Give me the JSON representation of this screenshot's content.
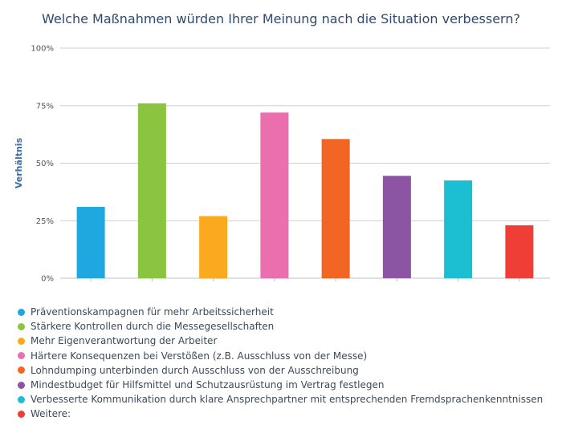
{
  "chart_data": {
    "type": "bar",
    "title": "Welche Maßnahmen würden Ihrer Meinung nach die Situation verbessern?",
    "ylabel": "Verhältnis",
    "xlabel": "",
    "ylim": [
      0,
      100
    ],
    "yticks": [
      "0%",
      "25%",
      "50%",
      "75%",
      "100%"
    ],
    "ytick_values": [
      0,
      25,
      50,
      75,
      100
    ],
    "grid": true,
    "legend_position": "bottom",
    "categories": [
      "Präventionskampagnen für mehr Arbeitssicherheit",
      "Stärkere Kontrollen durch die Messegesellschaften",
      "Mehr Eigenverantwortung der Arbeiter",
      "Härtere Konsequenzen bei Verstößen (z.B. Ausschluss von der Messe)",
      "Lohndumping unterbinden durch Ausschluss von der Ausschreibung",
      "Mindestbudget für Hilfsmittel und Schutzausrüstung im Vertrag festlegen",
      "Verbesserte Kommunikation durch klare Ansprechpartner mit entsprechenden Fremdsprachenkenntnissen",
      "Weitere:"
    ],
    "values": [
      31,
      76,
      27,
      72,
      60.5,
      44.5,
      42.5,
      23
    ],
    "colors": [
      "#1fa8e0",
      "#8bc540",
      "#fba91f",
      "#eb6faf",
      "#f26522",
      "#8e54a4",
      "#1bbfd1",
      "#ee3e36"
    ]
  }
}
